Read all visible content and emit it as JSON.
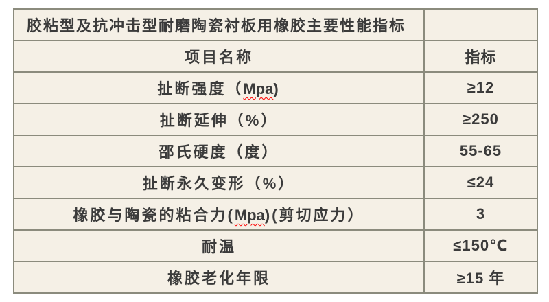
{
  "page": {
    "background_color": "#ffffff"
  },
  "table": {
    "border_color": "#8b8b7d",
    "cell_background_color": "#f5f0e6",
    "text_color": "#3b3b3b",
    "misspell_underline_color": "#ff0000",
    "title": "胶粘型及抗冲击型耐磨陶瓷衬板用橡胶主要性能指标",
    "title_value": "",
    "header": {
      "item": "项目名称",
      "value": "指标"
    },
    "rows": [
      {
        "item_prefix": "扯断强度（",
        "item_misspelled": "Mpa",
        "item_suffix": ")",
        "value": "≥12"
      },
      {
        "item_prefix": "扯断延伸（%）",
        "item_misspelled": "",
        "item_suffix": "",
        "value": "≥250"
      },
      {
        "item_prefix": "邵氏硬度（度）",
        "item_misspelled": "",
        "item_suffix": "",
        "value": "55-65"
      },
      {
        "item_prefix": "扯断永久变形（%）",
        "item_misspelled": "",
        "item_suffix": "",
        "value": "≤24"
      },
      {
        "item_prefix": "橡胶与陶瓷的粘合力(",
        "item_misspelled": "Mpa",
        "item_suffix": ")(剪切应力）",
        "value": "3"
      },
      {
        "item_prefix": "耐温",
        "item_misspelled": "",
        "item_suffix": "",
        "value": "≤150℃"
      },
      {
        "item_prefix": "橡胶老化年限",
        "item_misspelled": "",
        "item_suffix": "",
        "value": "≥15 年"
      }
    ]
  }
}
